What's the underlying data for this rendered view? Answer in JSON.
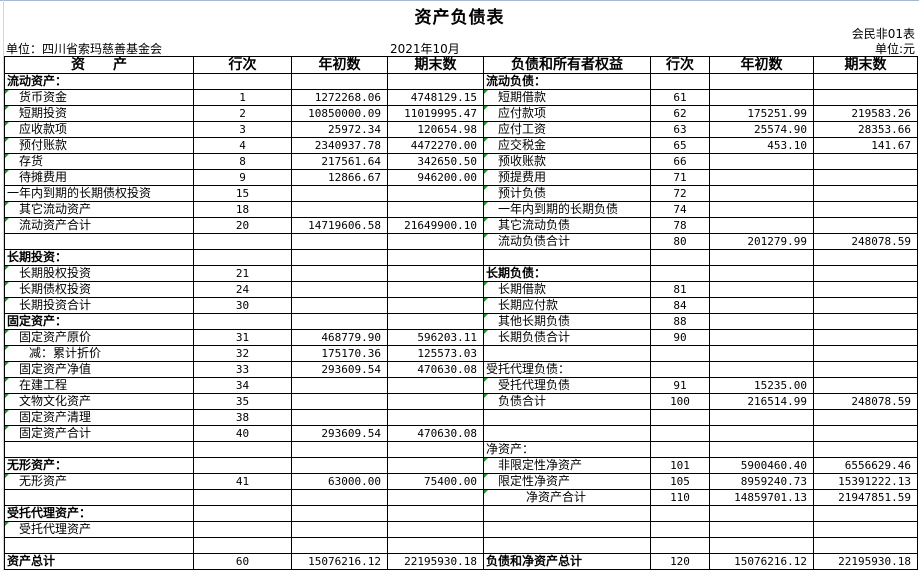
{
  "title": "资产负债表",
  "form_no": "会民非01表",
  "unit_label": "单位：四川省索玛慈善基金会",
  "period": "2021年10月",
  "currency": "单位:元",
  "headers": {
    "asset": "资　　产",
    "line": "行次",
    "begin": "年初数",
    "end": "期末数",
    "liab": "负债和所有者权益",
    "line2": "行次",
    "begin2": "年初数",
    "end2": "期末数"
  },
  "rows": [
    {
      "a": "流动资产：",
      "as": "bold",
      "al": "",
      "ab": "",
      "ae": "",
      "l": "流动负债：",
      "ls": "bold",
      "ll": "",
      "lb": "",
      "le": ""
    },
    {
      "a": "货币资金",
      "as": "ind1",
      "al": "1",
      "ab": "1272268.06",
      "ae": "4748129.15",
      "l": "短期借款",
      "ls": "ind1",
      "ll": "61",
      "lb": "",
      "le": ""
    },
    {
      "a": "短期投资",
      "as": "ind1",
      "al": "2",
      "ab": "10850000.09",
      "ae": "11019995.47",
      "l": "应付款项",
      "ls": "ind1",
      "ll": "62",
      "lb": "175251.99",
      "le": "219583.26"
    },
    {
      "a": "应收款项",
      "as": "ind1",
      "al": "3",
      "ab": "25972.34",
      "ae": "120654.98",
      "l": "应付工资",
      "ls": "ind1",
      "ll": "63",
      "lb": "25574.90",
      "le": "28353.66"
    },
    {
      "a": "预付账款",
      "as": "ind1",
      "al": "4",
      "ab": "2340937.78",
      "ae": "4472270.00",
      "l": "应交税金",
      "ls": "ind1",
      "ll": "65",
      "lb": "453.10",
      "le": "141.67"
    },
    {
      "a": "存货",
      "as": "ind1",
      "al": "8",
      "ab": "217561.64",
      "ae": "342650.50",
      "l": "预收账款",
      "ls": "ind1",
      "ll": "66",
      "lb": "",
      "le": ""
    },
    {
      "a": "待摊费用",
      "as": "ind1",
      "al": "9",
      "ab": "12866.67",
      "ae": "946200.00",
      "l": "预提费用",
      "ls": "ind1",
      "ll": "71",
      "lb": "",
      "le": ""
    },
    {
      "a": "一年内到期的长期债权投资",
      "as": "",
      "al": "15",
      "ab": "",
      "ae": "",
      "l": "预计负债",
      "ls": "ind1",
      "ll": "72",
      "lb": "",
      "le": ""
    },
    {
      "a": "其它流动资产",
      "as": "ind1",
      "al": "18",
      "ab": "",
      "ae": "",
      "l": "一年内到期的长期负债",
      "ls": "ind1",
      "ll": "74",
      "lb": "",
      "le": ""
    },
    {
      "a": "流动资产合计",
      "as": "ind1",
      "al": "20",
      "ab": "14719606.58",
      "ae": "21649900.10",
      "l": "其它流动负债",
      "ls": "ind1",
      "ll": "78",
      "lb": "",
      "le": ""
    },
    {
      "a": "",
      "as": "",
      "al": "",
      "ab": "",
      "ae": "",
      "l": "流动负债合计",
      "ls": "ind1",
      "ll": "80",
      "lb": "201279.99",
      "le": "248078.59"
    },
    {
      "a": "长期投资：",
      "as": "bold",
      "al": "",
      "ab": "",
      "ae": "",
      "l": "",
      "ls": "",
      "ll": "",
      "lb": "",
      "le": ""
    },
    {
      "a": "长期股权投资",
      "as": "ind1",
      "al": "21",
      "ab": "",
      "ae": "",
      "l": "长期负债：",
      "ls": "bold",
      "ll": "",
      "lb": "",
      "le": ""
    },
    {
      "a": "长期债权投资",
      "as": "ind1",
      "al": "24",
      "ab": "",
      "ae": "",
      "l": "长期借款",
      "ls": "ind1",
      "ll": "81",
      "lb": "",
      "le": ""
    },
    {
      "a": "长期投资合计",
      "as": "ind1",
      "al": "30",
      "ab": "",
      "ae": "",
      "l": "长期应付款",
      "ls": "ind1",
      "ll": "84",
      "lb": "",
      "le": ""
    },
    {
      "a": "固定资产：",
      "as": "bold",
      "al": "",
      "ab": "",
      "ae": "",
      "l": "其他长期负债",
      "ls": "ind1",
      "ll": "88",
      "lb": "",
      "le": ""
    },
    {
      "a": "固定资产原价",
      "as": "ind1",
      "al": "31",
      "ab": "468779.90",
      "ae": "596203.11",
      "l": "长期负债合计",
      "ls": "ind1",
      "ll": "90",
      "lb": "",
      "le": ""
    },
    {
      "a": "减：累计折价",
      "as": "ind2",
      "al": "32",
      "ab": "175170.36",
      "ae": "125573.03",
      "l": "",
      "ls": "",
      "ll": "",
      "lb": "",
      "le": ""
    },
    {
      "a": "固定资产净值",
      "as": "ind1",
      "al": "33",
      "ab": "293609.54",
      "ae": "470630.08",
      "l": "受托代理负债：",
      "ls": "",
      "ll": "",
      "lb": "",
      "le": ""
    },
    {
      "a": "在建工程",
      "as": "ind1",
      "al": "34",
      "ab": "",
      "ae": "",
      "l": "受托代理负债",
      "ls": "ind1",
      "ll": "91",
      "lb": "15235.00",
      "le": ""
    },
    {
      "a": "文物文化资产",
      "as": "ind1",
      "al": "35",
      "ab": "",
      "ae": "",
      "l": "负债合计",
      "ls": "ind1",
      "ll": "100",
      "lb": "216514.99",
      "le": "248078.59"
    },
    {
      "a": "固定资产清理",
      "as": "ind1",
      "al": "38",
      "ab": "",
      "ae": "",
      "l": "",
      "ls": "",
      "ll": "",
      "lb": "",
      "le": ""
    },
    {
      "a": "固定资产合计",
      "as": "ind1",
      "al": "40",
      "ab": "293609.54",
      "ae": "470630.08",
      "l": "",
      "ls": "",
      "ll": "",
      "lb": "",
      "le": ""
    },
    {
      "a": "",
      "as": "",
      "al": "",
      "ab": "",
      "ae": "",
      "l": "净资产：",
      "ls": "",
      "ll": "",
      "lb": "",
      "le": ""
    },
    {
      "a": "无形资产：",
      "as": "bold",
      "al": "",
      "ab": "",
      "ae": "",
      "l": "非限定性净资产",
      "ls": "ind1",
      "ll": "101",
      "lb": "5900460.40",
      "le": "6556629.46"
    },
    {
      "a": "无形资产",
      "as": "ind1",
      "al": "41",
      "ab": "63000.00",
      "ae": "75400.00",
      "l": "限定性净资产",
      "ls": "ind1",
      "ll": "105",
      "lb": "8959240.73",
      "le": "15391222.13"
    },
    {
      "a": "",
      "as": "",
      "al": "",
      "ab": "",
      "ae": "",
      "l": "净资产合计",
      "ls": "ind3",
      "ll": "110",
      "lb": "14859701.13",
      "le": "21947851.59"
    },
    {
      "a": "受托代理资产：",
      "as": "bold",
      "al": "",
      "ab": "",
      "ae": "",
      "l": "",
      "ls": "",
      "ll": "",
      "lb": "",
      "le": ""
    },
    {
      "a": "受托代理资产",
      "as": "ind1",
      "al": "",
      "ab": "",
      "ae": "",
      "l": "",
      "ls": "",
      "ll": "",
      "lb": "",
      "le": ""
    },
    {
      "a": "",
      "as": "",
      "al": "",
      "ab": "",
      "ae": "",
      "l": "",
      "ls": "",
      "ll": "",
      "lb": "",
      "le": ""
    },
    {
      "a": "资产总计",
      "as": "bold",
      "al": "60",
      "ab": "15076216.12",
      "ae": "22195930.18",
      "l": "负债和净资产总计",
      "ls": "bold",
      "ll": "120",
      "lb": "15076216.12",
      "le": "22195930.18"
    }
  ]
}
